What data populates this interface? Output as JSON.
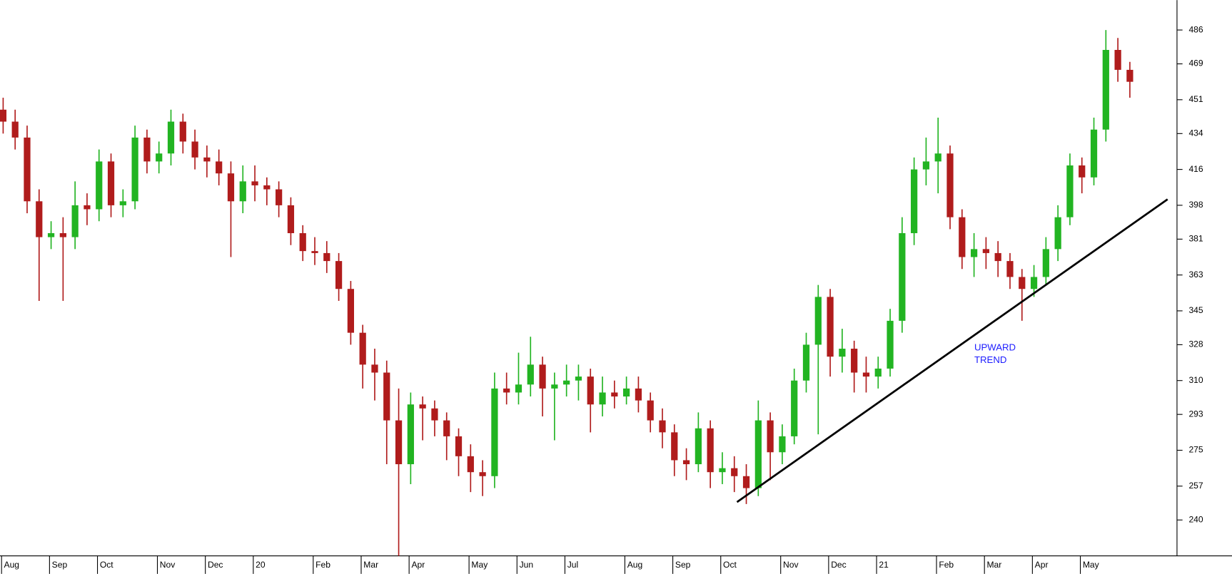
{
  "chart_data": {
    "type": "candlestick",
    "categories": [
      "Aug",
      null,
      null,
      null,
      "Sep",
      null,
      null,
      null,
      "Oct",
      null,
      null,
      null,
      null,
      "Nov",
      null,
      null,
      null,
      "Dec",
      null,
      null,
      null,
      "20",
      null,
      null,
      null,
      null,
      "Feb",
      null,
      null,
      null,
      "Mar",
      null,
      null,
      null,
      "Apr",
      null,
      null,
      null,
      null,
      "May",
      null,
      null,
      null,
      "Jun",
      null,
      null,
      null,
      "Jul",
      null,
      null,
      null,
      null,
      "Aug",
      null,
      null,
      null,
      "Sep",
      null,
      null,
      null,
      "Oct",
      null,
      null,
      null,
      null,
      "Nov",
      null,
      null,
      null,
      "Dec",
      null,
      null,
      null,
      "21",
      null,
      null,
      null,
      null,
      "Feb",
      null,
      null,
      null,
      "Mar",
      null,
      null,
      null,
      "Apr",
      null,
      null,
      null,
      "May",
      null,
      null,
      null,
      null
    ],
    "open": [
      446,
      440,
      432,
      400,
      382,
      384,
      382,
      398,
      396,
      420,
      398,
      400,
      432,
      420,
      424,
      440,
      430,
      422,
      420,
      414,
      400,
      410,
      408,
      406,
      398,
      384,
      375,
      374,
      370,
      356,
      334,
      318,
      314,
      290,
      268,
      298,
      296,
      290,
      282,
      272,
      264,
      262,
      306,
      304,
      308,
      318,
      306,
      308,
      310,
      312,
      298,
      304,
      302,
      306,
      300,
      290,
      284,
      270,
      268,
      286,
      264,
      266,
      262,
      256,
      290,
      274,
      282,
      310,
      328,
      352,
      322,
      326,
      314,
      312,
      316,
      340,
      384,
      416,
      420,
      424,
      392,
      372,
      376,
      374,
      370,
      362,
      356,
      362,
      376,
      392,
      418,
      412,
      436,
      476,
      466
    ],
    "high": [
      452,
      446,
      438,
      406,
      390,
      392,
      410,
      404,
      426,
      424,
      406,
      438,
      436,
      430,
      446,
      444,
      436,
      428,
      426,
      420,
      418,
      418,
      412,
      410,
      402,
      388,
      382,
      380,
      374,
      360,
      338,
      326,
      320,
      306,
      304,
      302,
      300,
      294,
      286,
      278,
      270,
      314,
      314,
      324,
      332,
      322,
      314,
      318,
      318,
      316,
      312,
      310,
      312,
      312,
      304,
      296,
      288,
      276,
      294,
      290,
      274,
      272,
      268,
      300,
      294,
      288,
      316,
      334,
      358,
      356,
      336,
      330,
      322,
      322,
      346,
      392,
      422,
      432,
      442,
      428,
      396,
      384,
      382,
      380,
      374,
      366,
      368,
      382,
      398,
      424,
      422,
      442,
      486,
      482,
      470
    ],
    "low": [
      434,
      426,
      394,
      350,
      376,
      350,
      376,
      388,
      390,
      392,
      392,
      396,
      414,
      414,
      418,
      424,
      416,
      412,
      408,
      372,
      394,
      400,
      398,
      392,
      378,
      370,
      368,
      364,
      350,
      328,
      306,
      300,
      268,
      222,
      258,
      280,
      282,
      270,
      262,
      254,
      252,
      256,
      298,
      298,
      302,
      292,
      280,
      302,
      300,
      284,
      292,
      296,
      298,
      294,
      284,
      276,
      262,
      260,
      264,
      256,
      258,
      254,
      248,
      252,
      260,
      268,
      278,
      304,
      283,
      312,
      314,
      304,
      304,
      306,
      312,
      334,
      378,
      408,
      404,
      386,
      366,
      362,
      366,
      362,
      356,
      340,
      352,
      358,
      370,
      388,
      404,
      408,
      430,
      460,
      452
    ],
    "close": [
      440,
      432,
      400,
      382,
      384,
      382,
      398,
      396,
      420,
      398,
      400,
      432,
      420,
      424,
      440,
      430,
      422,
      420,
      414,
      400,
      410,
      408,
      406,
      398,
      384,
      375,
      374,
      370,
      356,
      334,
      318,
      314,
      290,
      268,
      298,
      296,
      290,
      282,
      272,
      264,
      262,
      306,
      304,
      308,
      318,
      306,
      308,
      310,
      312,
      298,
      304,
      302,
      306,
      300,
      290,
      284,
      270,
      268,
      286,
      264,
      266,
      262,
      256,
      290,
      274,
      282,
      310,
      328,
      352,
      322,
      326,
      314,
      312,
      316,
      340,
      384,
      416,
      420,
      424,
      392,
      372,
      376,
      374,
      370,
      362,
      356,
      362,
      376,
      392,
      418,
      412,
      436,
      476,
      466,
      460
    ],
    "up_color": "#22b422",
    "down_color": "#b01c1c",
    "ylim": [
      222,
      501
    ],
    "yticks": [
      240,
      257,
      275,
      293,
      310,
      328,
      345,
      363,
      381,
      398,
      416,
      434,
      451,
      469,
      486
    ],
    "trendline": {
      "values": [
        249,
        401
      ],
      "color": "#000000"
    },
    "annotation": {
      "lines": [
        "UPWARD",
        "TREND"
      ],
      "color": "#1c1cff"
    }
  }
}
